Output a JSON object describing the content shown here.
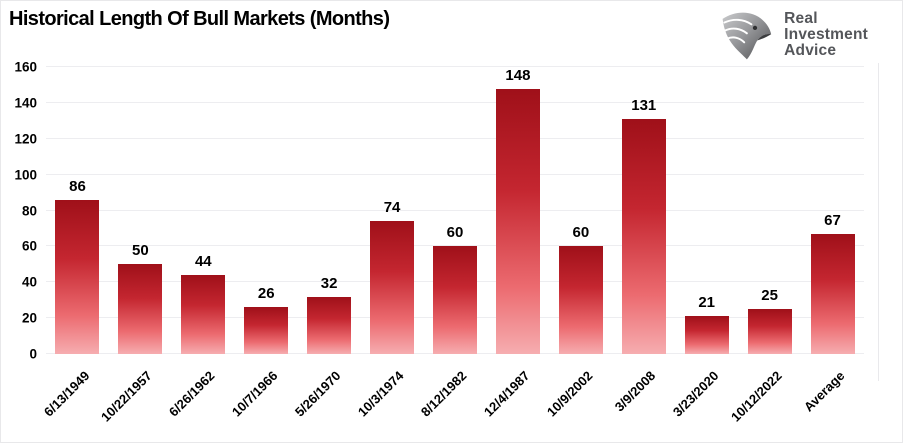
{
  "title": "Historical Length Of Bull Markets (Months)",
  "logo": {
    "line1": "Real",
    "line2": "Investment",
    "line3": "Advice"
  },
  "colors": {
    "bar_top": "#9f1019",
    "bar_upper_mid": "#c42630",
    "bar_lower_mid": "#ec6b70",
    "bar_bottom": "#f6adb0",
    "gridline": "#ededf0",
    "axis_text": "#000000",
    "logo_text": "#54565a",
    "canvas_border": "#e8e8ea"
  },
  "chart_data": {
    "type": "bar",
    "title": "Historical Length Of Bull Markets (Months)",
    "categories": [
      "6/13/1949",
      "10/22/1957",
      "6/26/1962",
      "10/7/1966",
      "5/26/1970",
      "10/3/1974",
      "8/12/1982",
      "12/4/1987",
      "10/9/2002",
      "3/9/2008",
      "3/23/2020",
      "10/12/2022",
      "Average"
    ],
    "values": [
      86,
      50,
      44,
      26,
      32,
      74,
      60,
      148,
      60,
      131,
      21,
      25,
      67
    ],
    "xlabel": "",
    "ylabel": "",
    "ylim": [
      0,
      160
    ],
    "y_ticks": [
      0,
      20,
      40,
      60,
      80,
      100,
      120,
      140,
      160
    ],
    "grid": "horizontal",
    "legend_position": "none",
    "bar_label_position": "above",
    "x_tick_rotation_deg": 45
  }
}
